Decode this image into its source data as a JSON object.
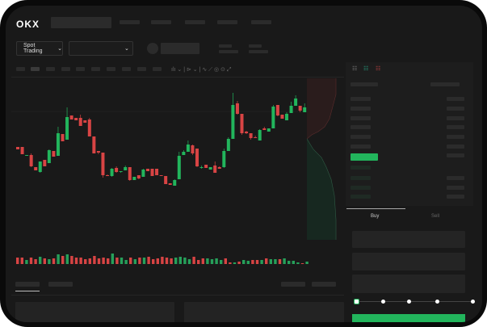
{
  "brand": {
    "logo": "OKX"
  },
  "toolbar": {
    "market_type": "Spot Trading",
    "market_type_chevron": "chevron-down-icon",
    "pair_chevron": "chevron-down-icon"
  },
  "trade_panel": {
    "tabs": [
      "Buy",
      "Sell"
    ],
    "active_tab": "Buy",
    "leverage_slider": {
      "steps": 5,
      "value": 0
    },
    "submit_color": "#22b55c"
  },
  "colors": {
    "up": "#22b55c",
    "down": "#d84444",
    "background": "#191919"
  },
  "chart_data": {
    "type": "candlestick",
    "candles": [
      [
        68,
        65,
        68,
        65
      ],
      [
        68,
        59,
        68,
        59
      ],
      [
        57,
        58,
        58,
        57
      ],
      [
        58,
        44,
        60,
        43
      ],
      [
        43,
        39,
        43,
        39
      ],
      [
        37,
        50,
        50,
        36
      ],
      [
        52,
        44,
        52,
        44
      ],
      [
        48,
        64,
        65,
        48
      ],
      [
        63,
        56,
        63,
        56
      ],
      [
        57,
        85,
        93,
        57
      ],
      [
        84,
        75,
        84,
        75
      ],
      [
        77,
        105,
        117,
        77
      ],
      [
        107,
        102,
        107,
        102
      ],
      [
        104,
        101,
        104,
        101
      ],
      [
        104,
        94,
        108,
        94
      ],
      [
        101,
        98,
        101,
        98
      ],
      [
        102,
        81,
        104,
        81
      ],
      [
        81,
        60,
        81,
        60
      ],
      [
        63,
        61,
        63,
        59
      ],
      [
        61,
        33,
        61,
        30
      ],
      [
        33,
        32,
        34,
        32
      ],
      [
        32,
        41,
        42,
        31
      ],
      [
        42,
        37,
        44,
        36
      ],
      [
        37,
        38,
        38,
        36
      ],
      [
        39,
        43,
        45,
        39
      ],
      [
        43,
        27,
        43,
        26
      ],
      [
        27,
        31,
        31,
        27
      ],
      [
        33,
        29,
        33,
        28
      ],
      [
        31,
        40,
        41,
        31
      ],
      [
        41,
        38,
        41,
        38
      ],
      [
        41,
        32,
        41,
        32
      ],
      [
        41,
        33,
        41,
        33
      ],
      [
        33,
        32,
        33,
        32
      ],
      [
        32,
        22,
        32,
        22
      ],
      [
        23,
        21,
        23,
        21
      ],
      [
        20,
        27,
        28,
        20
      ],
      [
        28,
        57,
        62,
        28
      ],
      [
        58,
        62,
        64,
        58
      ],
      [
        62,
        71,
        76,
        62
      ],
      [
        70,
        60,
        71,
        58
      ],
      [
        66,
        44,
        66,
        43
      ],
      [
        43,
        43,
        45,
        41
      ],
      [
        46,
        42,
        46,
        42
      ],
      [
        40,
        43,
        43,
        40
      ],
      [
        45,
        36,
        50,
        36
      ],
      [
        43,
        41,
        44,
        41
      ],
      [
        43,
        63,
        66,
        42
      ],
      [
        63,
        78,
        80,
        63
      ],
      [
        78,
        120,
        135,
        78
      ],
      [
        122,
        109,
        125,
        108
      ],
      [
        109,
        85,
        109,
        83
      ],
      [
        87,
        85,
        88,
        84
      ],
      [
        85,
        79,
        85,
        77
      ],
      [
        80,
        79,
        82,
        79
      ],
      [
        76,
        89,
        90,
        76
      ],
      [
        91,
        89,
        93,
        89
      ],
      [
        87,
        91,
        91,
        87
      ],
      [
        91,
        118,
        120,
        91
      ],
      [
        120,
        107,
        120,
        106
      ],
      [
        108,
        103,
        108,
        103
      ],
      [
        101,
        109,
        111,
        101
      ],
      [
        110,
        119,
        124,
        110
      ],
      [
        119,
        128,
        132,
        119
      ],
      [
        119,
        113,
        119,
        111
      ],
      [
        111,
        117,
        122,
        111
      ]
    ],
    "volume": [
      [
        8,
        0
      ],
      [
        8,
        0
      ],
      [
        5,
        1
      ],
      [
        8,
        0
      ],
      [
        6,
        0
      ],
      [
        9,
        1
      ],
      [
        7,
        0
      ],
      [
        6,
        1
      ],
      [
        7,
        0
      ],
      [
        12,
        1
      ],
      [
        10,
        0
      ],
      [
        12,
        1
      ],
      [
        10,
        0
      ],
      [
        8,
        0
      ],
      [
        8,
        0
      ],
      [
        6,
        0
      ],
      [
        7,
        0
      ],
      [
        10,
        0
      ],
      [
        7,
        0
      ],
      [
        8,
        0
      ],
      [
        7,
        0
      ],
      [
        13,
        1
      ],
      [
        8,
        0
      ],
      [
        8,
        1
      ],
      [
        5,
        1
      ],
      [
        8,
        0
      ],
      [
        6,
        1
      ],
      [
        8,
        0
      ],
      [
        8,
        1
      ],
      [
        9,
        0
      ],
      [
        6,
        0
      ],
      [
        7,
        0
      ],
      [
        9,
        0
      ],
      [
        8,
        0
      ],
      [
        7,
        0
      ],
      [
        8,
        1
      ],
      [
        9,
        1
      ],
      [
        8,
        1
      ],
      [
        6,
        1
      ],
      [
        9,
        0
      ],
      [
        5,
        0
      ],
      [
        7,
        0
      ],
      [
        7,
        1
      ],
      [
        6,
        1
      ],
      [
        7,
        1
      ],
      [
        5,
        1
      ],
      [
        7,
        0
      ],
      [
        2,
        0
      ],
      [
        2,
        1
      ],
      [
        3,
        0
      ],
      [
        5,
        1
      ],
      [
        4,
        1
      ],
      [
        5,
        0
      ],
      [
        5,
        0
      ],
      [
        5,
        1
      ],
      [
        7,
        0
      ],
      [
        6,
        1
      ],
      [
        6,
        1
      ],
      [
        6,
        0
      ],
      [
        7,
        1
      ],
      [
        4,
        1
      ],
      [
        4,
        1
      ],
      [
        2,
        1
      ],
      [
        1,
        0
      ],
      [
        3,
        1
      ]
    ]
  }
}
